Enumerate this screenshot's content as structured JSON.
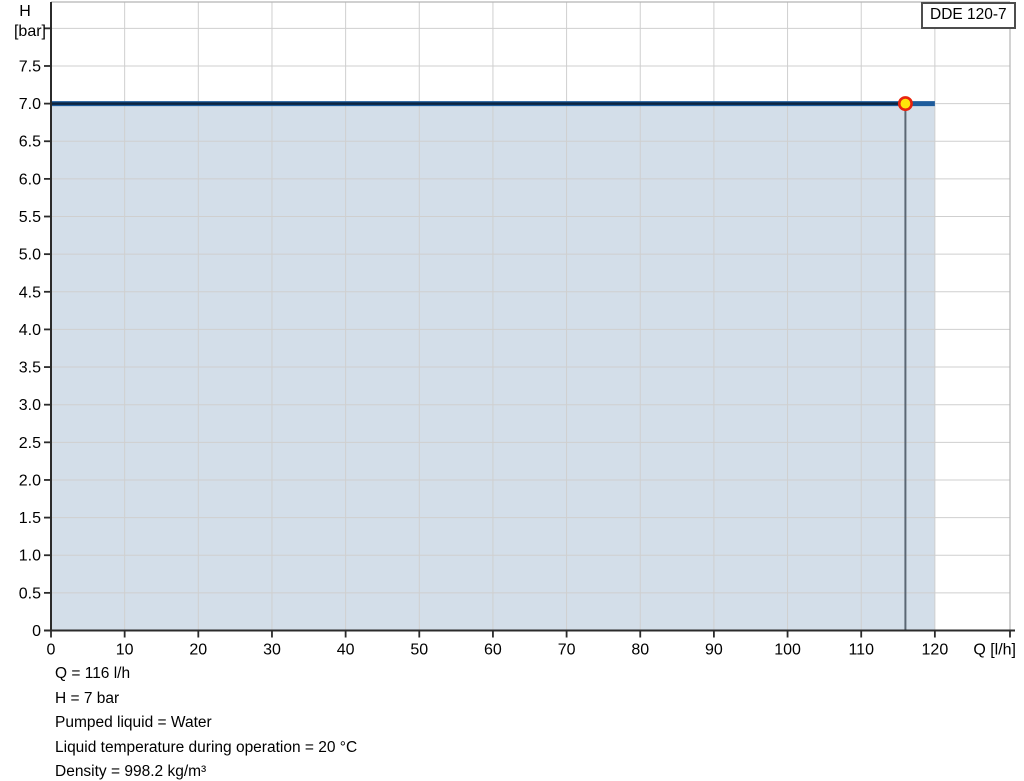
{
  "chart_data": {
    "type": "area",
    "title": "DDE 120-7",
    "xlabel": "Q [l/h]",
    "ylabel": "H [bar]",
    "x_axis": {
      "min": 0,
      "max": 130.2,
      "tick_values": [
        0,
        10,
        20,
        30,
        40,
        50,
        60,
        70,
        80,
        90,
        100,
        110,
        120
      ],
      "tick_labels": [
        "0",
        "10",
        "20",
        "30",
        "40",
        "50",
        "60",
        "70",
        "80",
        "90",
        "100",
        "110",
        "120"
      ],
      "unit_label": "Q [l/h]"
    },
    "y_axis": {
      "min": 0,
      "max": 8.35,
      "tick_values": [
        0,
        0.5,
        1,
        1.5,
        2,
        2.5,
        3,
        3.5,
        4,
        4.5,
        5,
        5.5,
        6,
        6.5,
        7,
        7.5,
        8
      ],
      "tick_labels": [
        "0",
        "0.5",
        "1.0",
        "1.5",
        "2.0",
        "2.5",
        "3.0",
        "3.5",
        "4.0",
        "4.5",
        "5.0",
        "5.5",
        "6.0",
        "6.5",
        "7.0",
        "7.5",
        ""
      ],
      "name_label": "H",
      "unit_label": "[bar]"
    },
    "series": [
      {
        "name": "max-capacity-curve",
        "points": [
          [
            0,
            7
          ],
          [
            120,
            7
          ]
        ],
        "color": "#1e5c9c",
        "width": 5
      },
      {
        "name": "selected-duty-range",
        "points": [
          [
            0,
            7
          ],
          [
            116,
            7
          ]
        ],
        "color": "#0c2440",
        "width": 2.4
      }
    ],
    "area": {
      "points": [
        [
          0,
          7
        ],
        [
          120,
          7
        ]
      ],
      "fill": "#d3dee9"
    },
    "operating_point": {
      "q": 116,
      "h": 7,
      "marker_fill": "#ffe60a",
      "marker_stroke": "#e8240f",
      "drop_line_color": "#5b6774"
    },
    "grid": {
      "on": true,
      "color": "#cfcfcf",
      "border_color": "#b4b4b4"
    },
    "axis_color": "#2b2b2b"
  },
  "footer": {
    "lines": [
      "Q = 116 l/h",
      "H = 7 bar",
      "Pumped liquid = Water",
      "Liquid temperature during operation = 20 °C",
      "Density = 998.2 kg/m³"
    ]
  }
}
